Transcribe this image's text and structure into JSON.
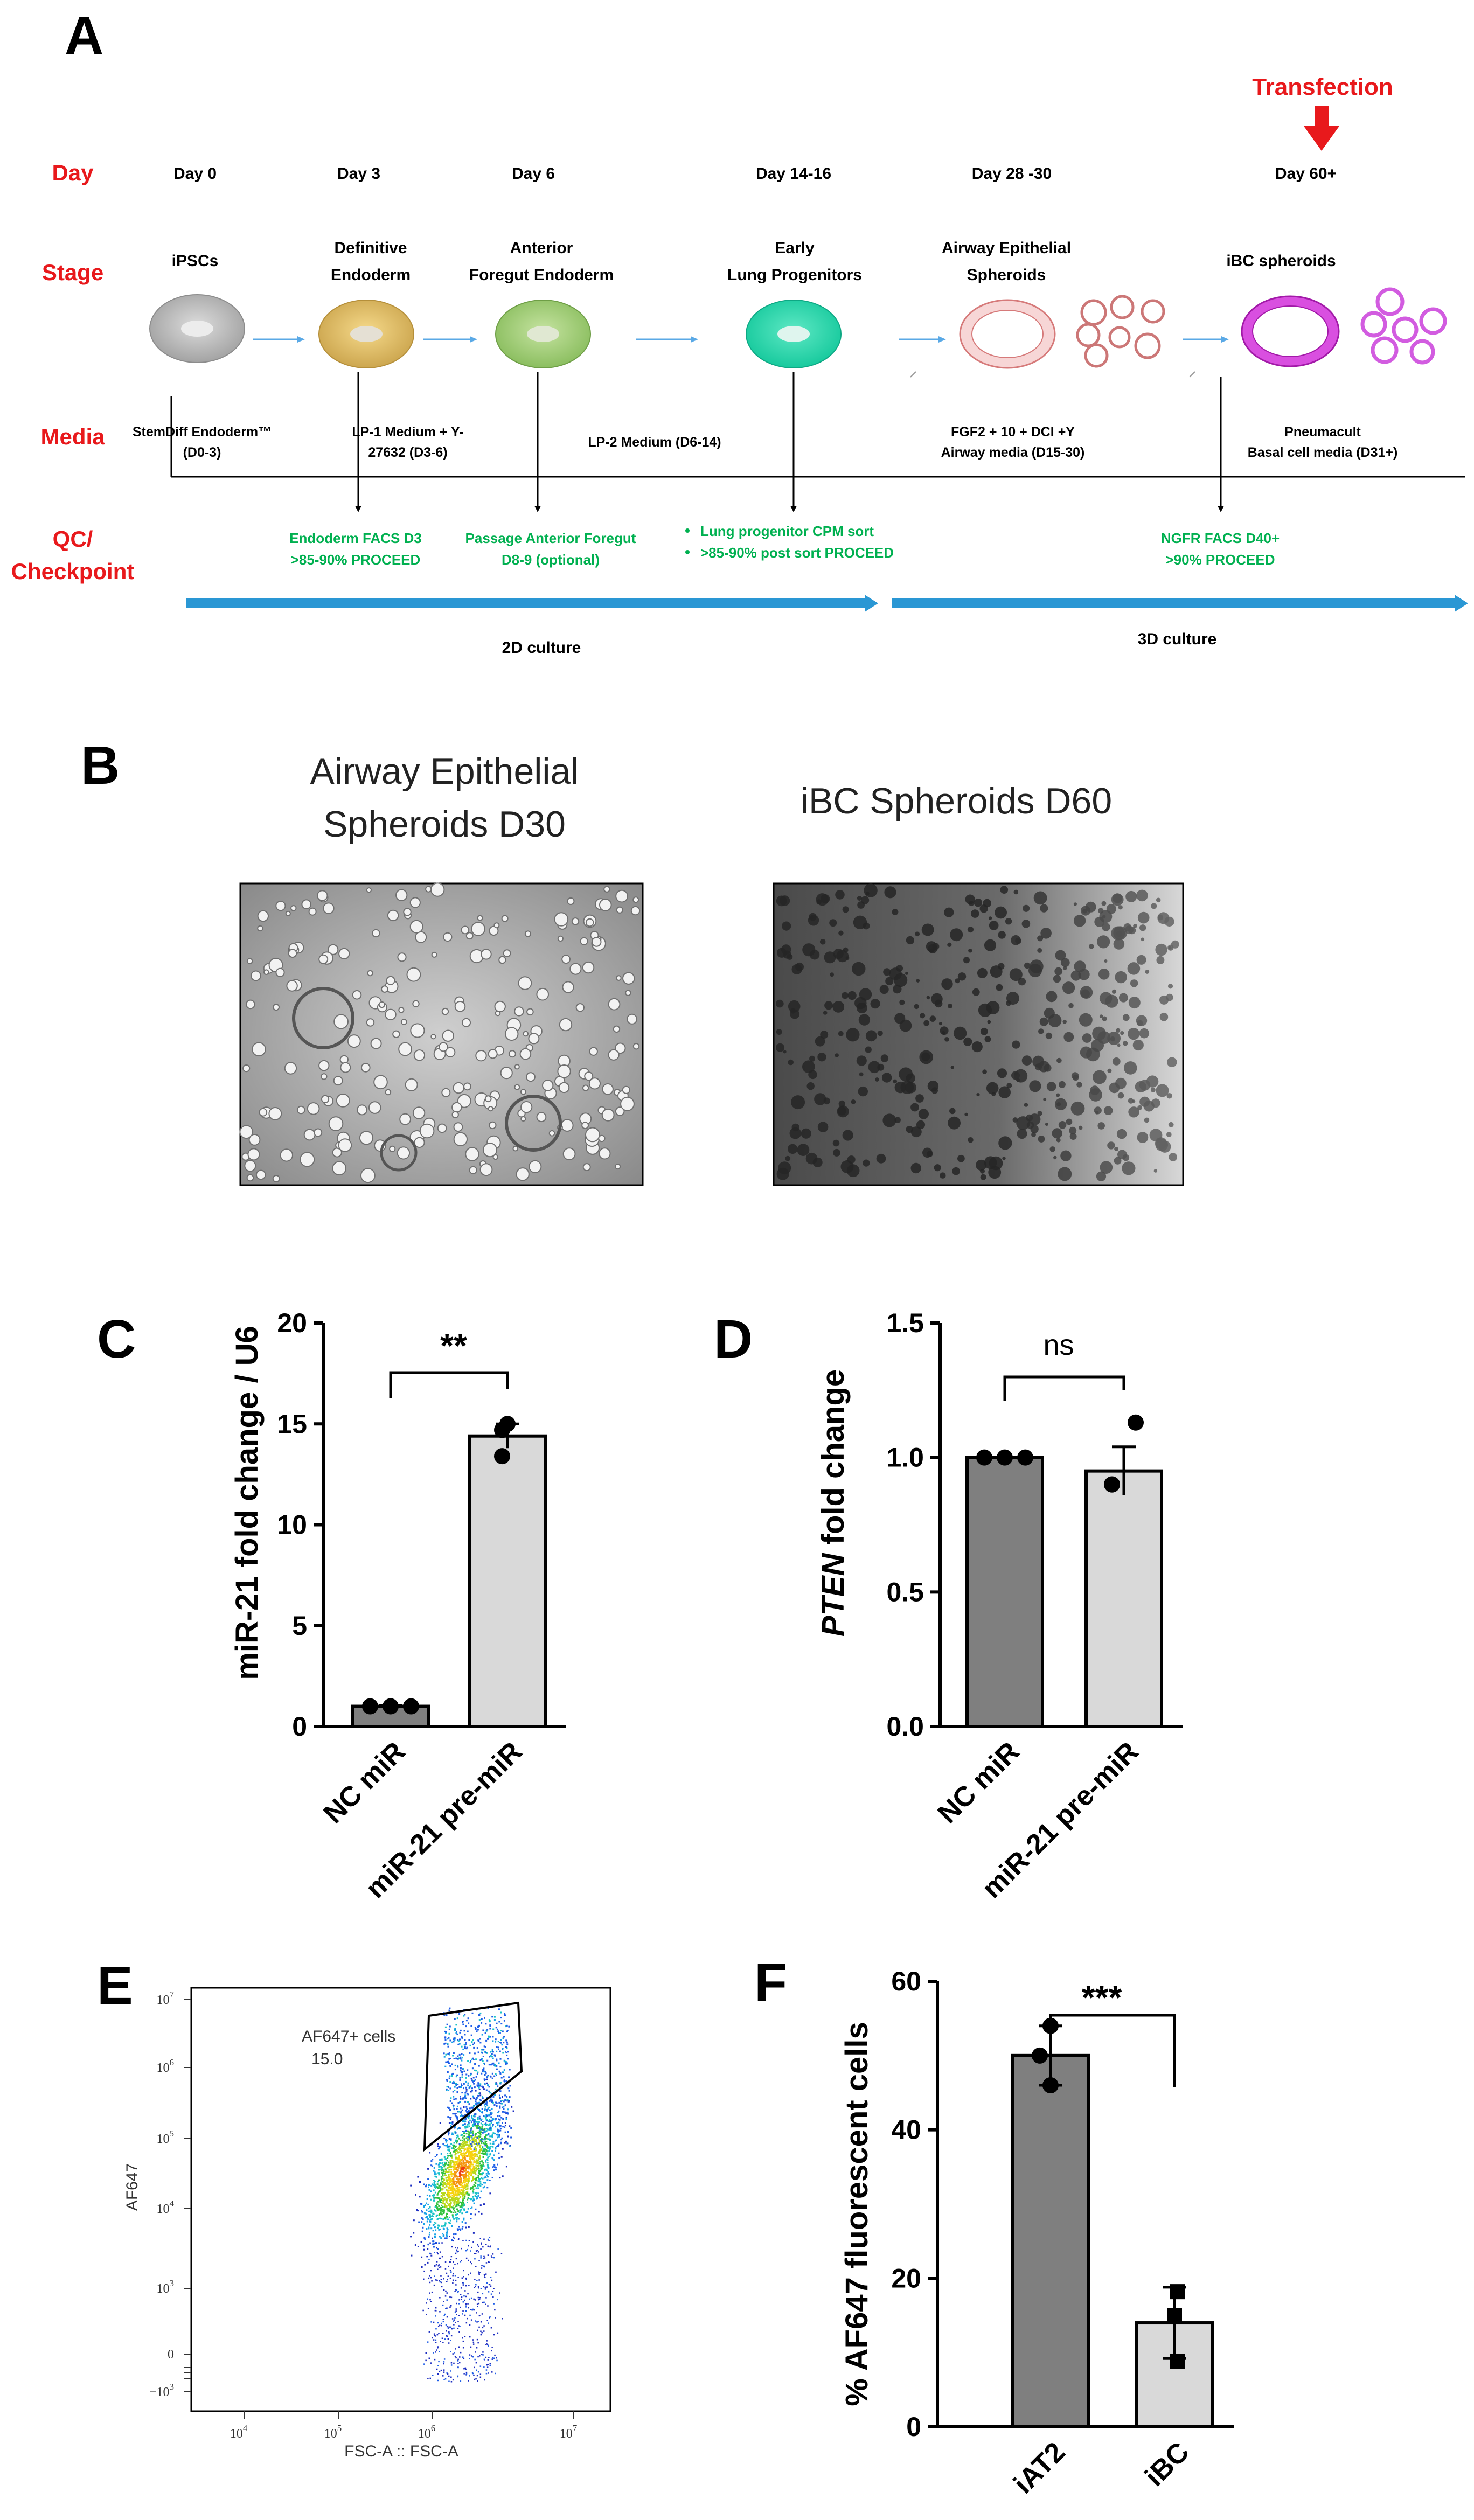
{
  "panelA": {
    "label": "A",
    "transfection": "Transfection",
    "rows": {
      "day": "Day",
      "stage": "Stage",
      "media": "Media",
      "qc1": "QC/",
      "qc2": "Checkpoint"
    },
    "days": [
      "Day 0",
      "Day 3",
      "Day 6",
      "Day 14-16",
      "Day 28 -30",
      "Day 60+"
    ],
    "stages": {
      "s0": "iPSCs",
      "s1a": "Definitive",
      "s1b": "Endoderm",
      "s2a": "Anterior",
      "s2b": "Foregut Endoderm",
      "s3a": "Early",
      "s3b": "Lung Progenitors",
      "s4a": "Airway Epithelial",
      "s4b": "Spheroids",
      "s5": "iBC spheroids"
    },
    "media": {
      "m0a": "StemDiff  Endoderm™",
      "m0b": "(D0-3)",
      "m1a": "LP-1 Medium + Y-",
      "m1b": "27632 (D3-6)",
      "m2": "LP-2 Medium (D6-14)",
      "m3a": "FGF2 + 10 + DCI +Y",
      "m3b": "Airway media  (D15-30)",
      "m4a": "Pneumacult",
      "m4b": "Basal cell media  (D31+)"
    },
    "qc": {
      "q1a": "Endoderm  FACS D3",
      "q1b": ">85-90% PROCEED",
      "q2a": "Passage Anterior Foregut",
      "q2b": "D8-9 (optional)",
      "q3a": "Lung progenitor CPM sort",
      "q3b": ">85-90% post sort PROCEED",
      "q4a": "NGFR FACS D40+",
      "q4b": ">90% PROCEED"
    },
    "culture2d": "2D culture",
    "culture3d": "3D culture",
    "colors": {
      "red": "#e8191c",
      "green": "#00b050",
      "blue": "#2a97d4"
    }
  },
  "panelB": {
    "label": "B",
    "left1": "Airway Epithelial",
    "left2": "Spheroids D30",
    "right": "iBC Spheroids D60"
  },
  "panelC": {
    "label": "C",
    "ylabel": "miR-21 fold change / U6",
    "yticks": [
      "0",
      "5",
      "10",
      "15",
      "20"
    ],
    "sig": "**"
  },
  "panelD": {
    "label": "D",
    "ylabel_italic": "PTEN",
    "ylabel_rest": " fold change",
    "yticks": [
      "0.0",
      "0.5",
      "1.0",
      "1.5"
    ],
    "sig": "ns"
  },
  "panelE": {
    "label": "E",
    "gate1": "AF647+ cells",
    "gate2": "15.0",
    "ylabel": "AF647",
    "xlabel": "FSC-A :: FSC-A",
    "xticks": [
      "10",
      "10",
      "10",
      "10"
    ],
    "xtick_exp": [
      "4",
      "5",
      "6",
      "7"
    ],
    "yticks": [
      "10",
      "10",
      "10",
      "10",
      "10",
      "0",
      "−10"
    ],
    "ytick_exp": [
      "7",
      "6",
      "5",
      "4",
      "3",
      "",
      "3"
    ]
  },
  "panelF": {
    "label": "F",
    "ylabel": "% AF647 fluorescent cells",
    "yticks": [
      "0",
      "20",
      "40",
      "60"
    ],
    "sig": "***"
  },
  "chart_data": [
    {
      "type": "bar",
      "panel": "C",
      "categories": [
        "NC miR",
        "miR-21 pre-miR"
      ],
      "values": [
        1.0,
        14.4
      ],
      "errors": [
        0.05,
        0.6
      ],
      "points": [
        [
          1.0,
          1.0,
          1.0
        ],
        [
          15.0,
          14.7,
          13.4
        ]
      ],
      "colors": [
        "#7f7f7f",
        "#d9d9d9"
      ],
      "xlabel": "",
      "ylabel": "miR-21 fold change / U6",
      "ylim": [
        0,
        20
      ],
      "significance": "**"
    },
    {
      "type": "bar",
      "panel": "D",
      "categories": [
        "NC miR",
        "miR-21 pre-miR"
      ],
      "values": [
        1.0,
        0.95
      ],
      "errors": [
        0.0,
        0.09
      ],
      "points": [
        [
          1.0,
          1.0,
          1.0
        ],
        [
          1.13,
          0.9,
          0.9
        ]
      ],
      "colors": [
        "#7f7f7f",
        "#d9d9d9"
      ],
      "xlabel": "",
      "ylabel": "PTEN fold change",
      "ylim": [
        0,
        1.5
      ],
      "significance": "ns"
    },
    {
      "type": "bar",
      "panel": "F",
      "categories": [
        "iAT2",
        "iBC"
      ],
      "values": [
        50.0,
        14.0
      ],
      "errors": [
        4.0,
        4.8
      ],
      "points": [
        [
          54.0,
          50.0,
          46.0
        ],
        [
          18.2,
          15.0,
          8.8
        ]
      ],
      "colors": [
        "#7f7f7f",
        "#d9d9d9"
      ],
      "xlabel": "",
      "ylabel": "% AF647 fluorescent cells",
      "ylim": [
        0,
        60
      ],
      "significance": "***"
    }
  ]
}
